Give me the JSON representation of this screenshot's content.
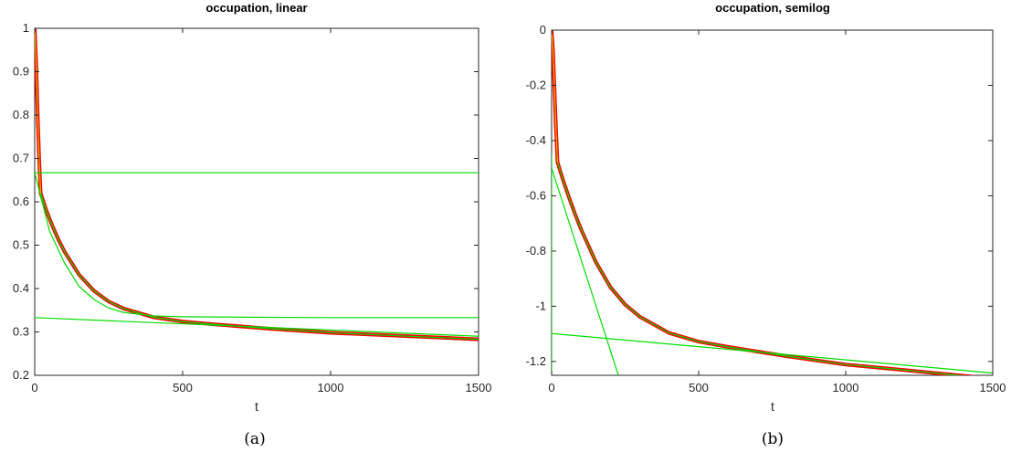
{
  "chart_data": [
    {
      "type": "line",
      "title": "occupation, linear",
      "xlabel": "t",
      "ylabel": "",
      "caption": "(a)",
      "xlim": [
        0,
        1500
      ],
      "ylim": [
        0.2,
        1
      ],
      "xticks": [
        0,
        500,
        1000,
        1500
      ],
      "xtick_labels": [
        "0",
        "500",
        "1000",
        "1500"
      ],
      "yticks": [
        0.2,
        0.3,
        0.4,
        0.5,
        0.6,
        0.7,
        0.8,
        0.9,
        1
      ],
      "ytick_labels": [
        "0.2",
        "0.3",
        "0.4",
        "0.5",
        "0.6",
        "0.7",
        "0.8",
        "0.9",
        "1"
      ],
      "grid": false,
      "series": [
        {
          "color": "#ff0000",
          "width": 4,
          "x": [
            0,
            5,
            10,
            15,
            20,
            40,
            60,
            80,
            100,
            150,
            200,
            250,
            300,
            400,
            500,
            600,
            800,
            1000,
            1200,
            1500
          ],
          "y": [
            1.0,
            0.92,
            0.8,
            0.7,
            0.62,
            0.579,
            0.544,
            0.513,
            0.486,
            0.432,
            0.395,
            0.37,
            0.354,
            0.334,
            0.324,
            0.318,
            0.307,
            0.298,
            0.292,
            0.283
          ]
        },
        {
          "color": "#00dd00",
          "width": 1.2,
          "x": [
            0,
            5,
            10,
            15,
            20,
            40,
            60,
            80,
            100,
            150,
            200,
            250,
            300,
            400,
            500,
            600,
            800,
            1000,
            1200,
            1500
          ],
          "y": [
            1.0,
            0.92,
            0.8,
            0.7,
            0.62,
            0.579,
            0.544,
            0.513,
            0.486,
            0.432,
            0.395,
            0.37,
            0.354,
            0.334,
            0.324,
            0.318,
            0.307,
            0.298,
            0.292,
            0.283
          ]
        },
        {
          "color": "#ffaa00",
          "width": 1,
          "x": [
            0,
            5,
            10,
            15,
            20
          ],
          "y": [
            1.0,
            0.92,
            0.8,
            0.7,
            0.62
          ]
        },
        {
          "color": "#00dd00",
          "width": 1.2,
          "x": [
            0,
            1500
          ],
          "y": [
            0.667,
            0.667
          ]
        },
        {
          "color": "#00dd00",
          "width": 1.2,
          "x": [
            0,
            1500
          ],
          "y": [
            0.333,
            0.29
          ]
        },
        {
          "color": "#00dd00",
          "width": 1.2,
          "x": [
            0,
            50,
            100,
            150,
            200,
            250,
            300,
            400,
            500,
            700,
            1000,
            1500
          ],
          "y": [
            0.667,
            0.533,
            0.46,
            0.405,
            0.375,
            0.355,
            0.345,
            0.337,
            0.335,
            0.334,
            0.333,
            0.333
          ]
        }
      ]
    },
    {
      "type": "line",
      "title": "occupation, semilog",
      "xlabel": "t",
      "ylabel": "",
      "caption": "(b)",
      "xlim": [
        0,
        1500
      ],
      "ylim": [
        -1.25,
        0
      ],
      "xticks": [
        0,
        500,
        1000,
        1500
      ],
      "xtick_labels": [
        "0",
        "500",
        "1000",
        "1500"
      ],
      "yticks": [
        0,
        -0.2,
        -0.4,
        -0.6,
        -0.8,
        -1,
        -1.2
      ],
      "ytick_labels": [
        "0",
        "-0.2",
        "-0.4",
        "-0.6",
        "-0.8",
        "-1",
        "-1.2"
      ],
      "grid": false,
      "series": [
        {
          "color": "#ff0000",
          "width": 4,
          "x": [
            0,
            5,
            10,
            15,
            20,
            40,
            60,
            80,
            100,
            150,
            200,
            250,
            300,
            400,
            500,
            600,
            800,
            1000,
            1200,
            1500
          ],
          "y": [
            0,
            -0.08,
            -0.22,
            -0.36,
            -0.478,
            -0.547,
            -0.609,
            -0.667,
            -0.721,
            -0.839,
            -0.931,
            -0.994,
            -1.038,
            -1.097,
            -1.128,
            -1.147,
            -1.181,
            -1.211,
            -1.231,
            -1.262
          ]
        },
        {
          "color": "#00dd00",
          "width": 1.2,
          "x": [
            0,
            5,
            10,
            15,
            20,
            40,
            60,
            80,
            100,
            150,
            200,
            250,
            300,
            400,
            500,
            600,
            800,
            1000,
            1200,
            1500
          ],
          "y": [
            0,
            -0.08,
            -0.22,
            -0.36,
            -0.478,
            -0.547,
            -0.609,
            -0.667,
            -0.721,
            -0.839,
            -0.931,
            -0.994,
            -1.038,
            -1.097,
            -1.128,
            -1.147,
            -1.181,
            -1.211,
            -1.231,
            -1.262
          ]
        },
        {
          "color": "#ffaa00",
          "width": 1,
          "x": [
            0,
            5,
            10,
            15,
            20
          ],
          "y": [
            0,
            -0.08,
            -0.22,
            -0.36,
            -0.478
          ]
        },
        {
          "color": "#00dd00",
          "width": 1.2,
          "x": [
            0,
            1500
          ],
          "y": [
            -1.0986,
            -1.2417
          ]
        },
        {
          "color": "#00dd00",
          "width": 1.2,
          "x": [
            0,
            230
          ],
          "y": [
            -0.5,
            -1.26
          ]
        },
        {
          "color": "#00dd00",
          "width": 1.2,
          "x": [
            0,
            0
          ],
          "y": [
            -0.45,
            -1.26
          ]
        }
      ]
    }
  ]
}
